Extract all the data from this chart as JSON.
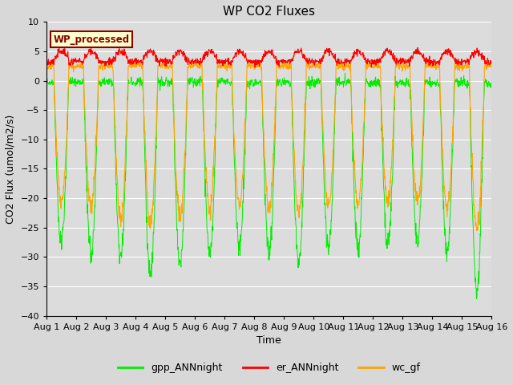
{
  "title": "WP CO2 Fluxes",
  "xlabel": "Time",
  "ylabel": "CO2 Flux (umol/m2/s)",
  "ylim": [
    -40,
    10
  ],
  "fig_bg": "#d8d8d8",
  "plot_bg": "#dcdcdc",
  "annotation_text": "WP_processed",
  "annotation_bg": "#ffffcc",
  "annotation_edge": "#8b0000",
  "legend_labels": [
    "gpp_ANNnight",
    "er_ANNnight",
    "wc_gf"
  ],
  "line_colors": [
    "#00ee00",
    "#ff0000",
    "#ffa500"
  ],
  "xtick_labels": [
    "Aug 1",
    "Aug 2",
    "Aug 3",
    "Aug 4",
    "Aug 5",
    "Aug 6",
    "Aug 7",
    "Aug 8",
    "Aug 9",
    "Aug 10",
    "Aug 11",
    "Aug 12",
    "Aug 13",
    "Aug 14",
    "Aug 15",
    "Aug 16"
  ],
  "n_days": 15,
  "points_per_day": 96
}
